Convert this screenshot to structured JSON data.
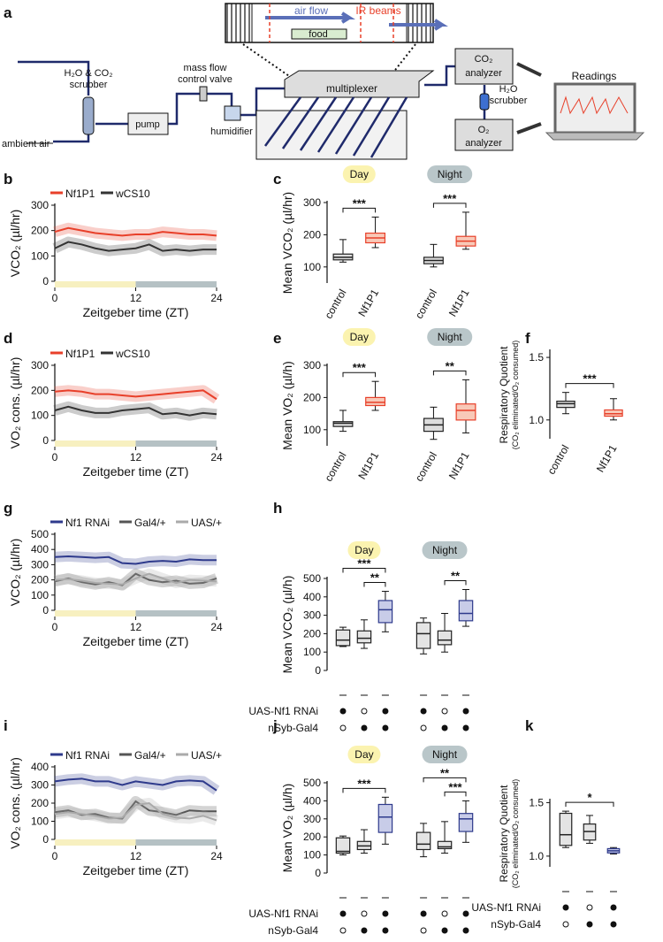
{
  "diagram": {
    "panel": "a",
    "air_flow": "air flow",
    "ir_beams": "IR beams",
    "food": "food",
    "scrubber_1": "H₂O & CO₂",
    "scrubber_2": "scrubber",
    "ambient_air": "ambient air",
    "pump": "pump",
    "valve_1": "mass flow",
    "valve_2": "control valve",
    "humidifier": "humidifier",
    "multiplexer": "multiplexer",
    "co2_1": "CO₂",
    "co2_2": "analyzer",
    "h2o_1": "H₂O",
    "h2o_2": "scrubber",
    "o2_1": "O₂",
    "o2_2": "analyzer",
    "readings": "Readings"
  },
  "chart_data": [
    {
      "type": "line",
      "panel": "b",
      "ylabel": "VCO₂ (µl/hr)",
      "xlabel": "Zeitgeber time (ZT)",
      "x": [
        0,
        2,
        4,
        6,
        8,
        10,
        12,
        14,
        16,
        18,
        20,
        22,
        24
      ],
      "xlim": [
        0,
        24
      ],
      "xticks": [
        0,
        12,
        24
      ],
      "ylim": [
        0,
        300
      ],
      "yticks": [
        0,
        100,
        200,
        300
      ],
      "light_dark": [
        {
          "from": 0,
          "to": 12,
          "color": "#f7f0c0"
        },
        {
          "from": 12,
          "to": 24,
          "color": "#b5c1c4"
        }
      ],
      "series": [
        {
          "name": "Nf1P1",
          "color": "#e8402a",
          "values": [
            195,
            210,
            200,
            190,
            185,
            180,
            185,
            185,
            195,
            190,
            185,
            185,
            180
          ]
        },
        {
          "name": "wCS10",
          "color": "#333333",
          "values": [
            130,
            155,
            145,
            130,
            120,
            125,
            130,
            145,
            120,
            125,
            120,
            125,
            125
          ]
        }
      ]
    },
    {
      "type": "box",
      "panel": "c",
      "ylabel": "Mean VCO₂ (µl/hr)",
      "categories": [
        "control",
        "Nf1P1",
        "control",
        "Nf1P1"
      ],
      "ylim": [
        50,
        300
      ],
      "yticks": [
        100,
        200,
        300
      ],
      "groups": [
        {
          "label": "Day",
          "color": "#fbf3b0",
          "start": 0,
          "end": 1
        },
        {
          "label": "Night",
          "color": "#b9c6c9",
          "start": 2,
          "end": 3
        }
      ],
      "boxes": [
        {
          "min": 115,
          "q1": 122,
          "median": 130,
          "q3": 140,
          "max": 185,
          "fill": "#dddddd",
          "stroke": "#222222"
        },
        {
          "min": 160,
          "q1": 175,
          "median": 190,
          "q3": 205,
          "max": 255,
          "fill": "#f8c9b8",
          "stroke": "#e8402a"
        },
        {
          "min": 100,
          "q1": 110,
          "median": 120,
          "q3": 130,
          "max": 170,
          "fill": "#dddddd",
          "stroke": "#222222"
        },
        {
          "min": 155,
          "q1": 165,
          "median": 180,
          "q3": 195,
          "max": 270,
          "fill": "#f8c9b8",
          "stroke": "#e8402a"
        }
      ],
      "significance": [
        {
          "label": "***",
          "from": 0,
          "to": 1
        },
        {
          "label": "***",
          "from": 2,
          "to": 3
        }
      ]
    },
    {
      "type": "line",
      "panel": "d",
      "ylabel": "VO₂ cons. (µl/hr)",
      "xlabel": "Zeitgeber time (ZT)",
      "x": [
        0,
        2,
        4,
        6,
        8,
        10,
        12,
        14,
        16,
        18,
        20,
        22,
        24
      ],
      "xlim": [
        0,
        24
      ],
      "xticks": [
        0,
        12,
        24
      ],
      "ylim": [
        0,
        300
      ],
      "yticks": [
        0,
        100,
        200,
        300
      ],
      "light_dark": [
        {
          "from": 0,
          "to": 12,
          "color": "#f7f0c0"
        },
        {
          "from": 12,
          "to": 24,
          "color": "#b5c1c4"
        }
      ],
      "series": [
        {
          "name": "Nf1P1",
          "color": "#e8402a",
          "values": [
            195,
            200,
            195,
            185,
            185,
            180,
            175,
            180,
            185,
            190,
            195,
            200,
            165
          ]
        },
        {
          "name": "wCS10",
          "color": "#333333",
          "values": [
            120,
            135,
            120,
            110,
            110,
            120,
            125,
            130,
            105,
            110,
            100,
            110,
            105
          ]
        }
      ]
    },
    {
      "type": "box",
      "panel": "e",
      "ylabel": "Mean VO₂ (µl/h)",
      "categories": [
        "control",
        "Nf1P1",
        "control",
        "Nf1P1"
      ],
      "ylim": [
        50,
        300
      ],
      "yticks": [
        100,
        200,
        300
      ],
      "groups": [
        {
          "label": "Day",
          "color": "#fbf3b0",
          "start": 0,
          "end": 1
        },
        {
          "label": "Night",
          "color": "#b9c6c9",
          "start": 2,
          "end": 3
        }
      ],
      "boxes": [
        {
          "min": 95,
          "q1": 110,
          "median": 120,
          "q3": 125,
          "max": 160,
          "fill": "#dddddd",
          "stroke": "#222222"
        },
        {
          "min": 160,
          "q1": 175,
          "median": 185,
          "q3": 200,
          "max": 250,
          "fill": "#f8c9b8",
          "stroke": "#e8402a"
        },
        {
          "min": 70,
          "q1": 95,
          "median": 115,
          "q3": 135,
          "max": 170,
          "fill": "#dddddd",
          "stroke": "#222222"
        },
        {
          "min": 90,
          "q1": 130,
          "median": 160,
          "q3": 180,
          "max": 255,
          "fill": "#f8c9b8",
          "stroke": "#e8402a"
        }
      ],
      "significance": [
        {
          "label": "***",
          "from": 0,
          "to": 1
        },
        {
          "label": "**",
          "from": 2,
          "to": 3
        }
      ]
    },
    {
      "type": "box",
      "panel": "f",
      "ylabel": "Respiratory Quotient",
      "ylabel_sub": "(CO₂ eliminated/O₂ consumed)",
      "categories": [
        "control",
        "Nf1P1"
      ],
      "ylim": [
        0.85,
        1.55
      ],
      "yticks": [
        {
          "value": 1,
          "label": "1.0"
        },
        {
          "value": 1.5,
          "label": "1.5"
        }
      ],
      "boxes": [
        {
          "min": 1.05,
          "q1": 1.1,
          "median": 1.13,
          "q3": 1.15,
          "max": 1.22,
          "fill": "#dddddd",
          "stroke": "#222222"
        },
        {
          "min": 1.0,
          "q1": 1.03,
          "median": 1.05,
          "q3": 1.08,
          "max": 1.17,
          "fill": "#f8c9b8",
          "stroke": "#e8402a"
        }
      ],
      "significance": [
        {
          "label": "***",
          "from": 0,
          "to": 1
        }
      ]
    },
    {
      "type": "line",
      "panel": "g",
      "ylabel": "VCO₂ (µl/hr)",
      "xlabel": "Zeitgeber time (ZT)",
      "x": [
        0,
        2,
        4,
        6,
        8,
        10,
        12,
        14,
        16,
        18,
        20,
        22,
        24
      ],
      "xlim": [
        0,
        24
      ],
      "xticks": [
        0,
        12,
        24
      ],
      "ylim": [
        0,
        500
      ],
      "yticks": [
        0,
        100,
        200,
        300,
        400,
        500
      ],
      "light_dark": [
        {
          "from": 0,
          "to": 12,
          "color": "#f7f0c0"
        },
        {
          "from": 12,
          "to": 24,
          "color": "#b5c1c4"
        }
      ],
      "series": [
        {
          "name": "Nf1 RNAi",
          "color": "#2e3a8c",
          "values": [
            350,
            355,
            350,
            345,
            350,
            310,
            305,
            320,
            325,
            320,
            335,
            330,
            330
          ]
        },
        {
          "name": "Gal4/+",
          "color": "#555555",
          "values": [
            190,
            210,
            185,
            170,
            185,
            165,
            240,
            200,
            185,
            195,
            175,
            180,
            210
          ]
        },
        {
          "name": "UAS/+",
          "color": "#aaaaaa",
          "values": [
            200,
            205,
            195,
            180,
            175,
            170,
            210,
            240,
            210,
            180,
            200,
            195,
            190
          ]
        }
      ]
    },
    {
      "type": "box",
      "panel": "h",
      "ylabel": "Mean VCO₂ (µl/h)",
      "ylim": [
        0,
        500
      ],
      "yticks": [
        0,
        100,
        200,
        300,
        400,
        500
      ],
      "groups": [
        {
          "label": "Day",
          "color": "#fbf3b0",
          "start": 0,
          "end": 2
        },
        {
          "label": "Night",
          "color": "#b9c6c9",
          "start": 3,
          "end": 5
        }
      ],
      "boxes": [
        {
          "min": 130,
          "q1": 135,
          "median": 165,
          "q3": 220,
          "max": 235,
          "fill": "#e4e4e4",
          "stroke": "#222222"
        },
        {
          "min": 120,
          "q1": 150,
          "median": 175,
          "q3": 215,
          "max": 275,
          "fill": "#e4e4e4",
          "stroke": "#222222"
        },
        {
          "min": 210,
          "q1": 260,
          "median": 330,
          "q3": 380,
          "max": 430,
          "fill": "#c8cce8",
          "stroke": "#2e3a8c"
        },
        {
          "min": 90,
          "q1": 120,
          "median": 200,
          "q3": 260,
          "max": 285,
          "fill": "#e4e4e4",
          "stroke": "#222222"
        },
        {
          "min": 100,
          "q1": 140,
          "median": 165,
          "q3": 215,
          "max": 310,
          "fill": "#e4e4e4",
          "stroke": "#222222"
        },
        {
          "min": 240,
          "q1": 270,
          "median": 310,
          "q3": 380,
          "max": 440,
          "fill": "#c8cce8",
          "stroke": "#2e3a8c"
        }
      ],
      "significance": [
        {
          "label": "**",
          "from": 1,
          "to": 2
        },
        {
          "label": "***",
          "from": 0,
          "to": 2
        },
        {
          "label": "**",
          "from": 4,
          "to": 5
        }
      ],
      "genotype_rows": [
        {
          "label": "UAS-Nf1 RNAi",
          "present": [
            true,
            false,
            true,
            true,
            false,
            true
          ]
        },
        {
          "label": "nSyb-Gal4",
          "present": [
            false,
            true,
            true,
            false,
            true,
            true
          ]
        }
      ]
    },
    {
      "type": "line",
      "panel": "i",
      "ylabel": "VO₂ cons. (µl/hr)",
      "xlabel": "Zeitgeber time (ZT)",
      "x": [
        0,
        2,
        4,
        6,
        8,
        10,
        12,
        14,
        16,
        18,
        20,
        22,
        24
      ],
      "xlim": [
        0,
        24
      ],
      "xticks": [
        0,
        12,
        24
      ],
      "ylim": [
        0,
        400
      ],
      "yticks": [
        0,
        100,
        200,
        300,
        400
      ],
      "light_dark": [
        {
          "from": 0,
          "to": 12,
          "color": "#f7f0c0"
        },
        {
          "from": 12,
          "to": 24,
          "color": "#b5c1c4"
        }
      ],
      "series": [
        {
          "name": "Nf1 RNAi",
          "color": "#2e3a8c",
          "values": [
            320,
            330,
            335,
            320,
            320,
            300,
            320,
            310,
            300,
            320,
            325,
            320,
            270
          ]
        },
        {
          "name": "Gal4/+",
          "color": "#555555",
          "values": [
            150,
            160,
            135,
            140,
            120,
            115,
            210,
            160,
            150,
            135,
            160,
            155,
            155
          ]
        },
        {
          "name": "UAS/+",
          "color": "#aaaaaa",
          "values": [
            140,
            150,
            140,
            130,
            115,
            120,
            190,
            200,
            140,
            120,
            115,
            130,
            105
          ]
        }
      ]
    },
    {
      "type": "box",
      "panel": "j",
      "ylabel": "Mean VO₂ (µl/h)",
      "ylim": [
        0,
        500
      ],
      "yticks": [
        0,
        100,
        200,
        300,
        400,
        500
      ],
      "groups": [
        {
          "label": "Day",
          "color": "#fbf3b0",
          "start": 0,
          "end": 2
        },
        {
          "label": "Night",
          "color": "#b9c6c9",
          "start": 3,
          "end": 5
        }
      ],
      "boxes": [
        {
          "min": 100,
          "q1": 110,
          "median": 120,
          "q3": 195,
          "max": 205,
          "fill": "#e4e4e4",
          "stroke": "#222222"
        },
        {
          "min": 110,
          "q1": 130,
          "median": 150,
          "q3": 175,
          "max": 240,
          "fill": "#e4e4e4",
          "stroke": "#222222"
        },
        {
          "min": 160,
          "q1": 225,
          "median": 310,
          "q3": 380,
          "max": 420,
          "fill": "#c8cce8",
          "stroke": "#2e3a8c"
        },
        {
          "min": 90,
          "q1": 130,
          "median": 160,
          "q3": 225,
          "max": 275,
          "fill": "#e4e4e4",
          "stroke": "#222222"
        },
        {
          "min": 110,
          "q1": 135,
          "median": 145,
          "q3": 175,
          "max": 285,
          "fill": "#e4e4e4",
          "stroke": "#222222"
        },
        {
          "min": 170,
          "q1": 230,
          "median": 300,
          "q3": 330,
          "max": 400,
          "fill": "#c8cce8",
          "stroke": "#2e3a8c"
        }
      ],
      "significance": [
        {
          "label": "***",
          "from": 0,
          "to": 2
        },
        {
          "label": "***",
          "from": 4,
          "to": 5
        },
        {
          "label": "**",
          "from": 3,
          "to": 5
        }
      ],
      "genotype_rows": [
        {
          "label": "UAS-Nf1 RNAi",
          "present": [
            true,
            false,
            true,
            true,
            false,
            true
          ]
        },
        {
          "label": "nSyb-Gal4",
          "present": [
            false,
            true,
            true,
            false,
            true,
            true
          ]
        }
      ]
    },
    {
      "type": "box",
      "panel": "k",
      "ylabel": "Respiratory Quotient",
      "ylabel_sub": "(CO₂ eliminated/O₂ consumed)",
      "ylim": [
        0.9,
        1.52
      ],
      "yticks": [
        {
          "value": 1,
          "label": "1.0"
        },
        {
          "value": 1.5,
          "label": "1.5"
        }
      ],
      "boxes": [
        {
          "min": 1.08,
          "q1": 1.1,
          "median": 1.2,
          "q3": 1.4,
          "max": 1.42,
          "fill": "#e4e4e4",
          "stroke": "#222222"
        },
        {
          "min": 1.12,
          "q1": 1.15,
          "median": 1.23,
          "q3": 1.3,
          "max": 1.38,
          "fill": "#e4e4e4",
          "stroke": "#222222"
        },
        {
          "min": 1.02,
          "q1": 1.03,
          "median": 1.05,
          "q3": 1.07,
          "max": 1.08,
          "fill": "#c8cce8",
          "stroke": "#2e3a8c"
        }
      ],
      "significance": [
        {
          "label": "*",
          "from": 0,
          "to": 2
        }
      ],
      "genotype_rows": [
        {
          "label": "UAS-Nf1 RNAi",
          "present": [
            true,
            false,
            true
          ]
        },
        {
          "label": "nSyb-Gal4",
          "present": [
            false,
            true,
            true
          ]
        }
      ]
    }
  ]
}
